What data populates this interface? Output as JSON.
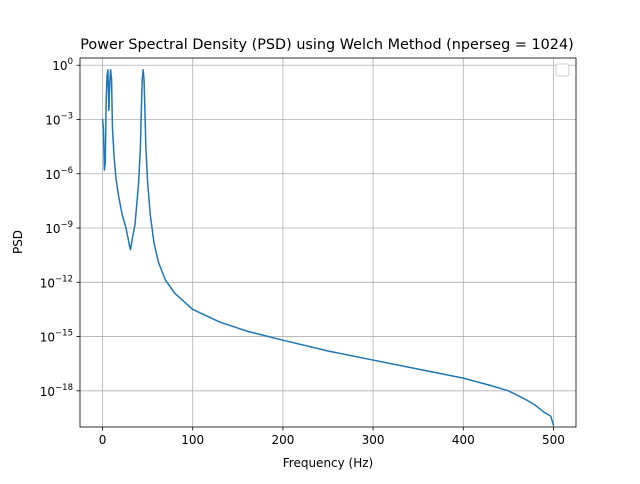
{
  "chart_data": {
    "type": "line",
    "title": "Power Spectral Density (PSD) using Welch Method (nperseg = 1024)",
    "xlabel": "Frequency (Hz)",
    "ylabel": "PSD",
    "yscale": "log",
    "xlim": [
      -25,
      525
    ],
    "ylim_log10": [
      -20,
      0.4
    ],
    "grid": true,
    "legend": {
      "placement": "top-right",
      "entries": []
    },
    "x_ticks": [
      {
        "value": 0,
        "label": "0"
      },
      {
        "value": 100,
        "label": "100"
      },
      {
        "value": 200,
        "label": "200"
      },
      {
        "value": 300,
        "label": "300"
      },
      {
        "value": 400,
        "label": "400"
      },
      {
        "value": 500,
        "label": "500"
      }
    ],
    "y_ticks": [
      {
        "log10": 0,
        "base": "10",
        "exp": "0"
      },
      {
        "log10": -3,
        "base": "10",
        "exp": "−3"
      },
      {
        "log10": -6,
        "base": "10",
        "exp": "−6"
      },
      {
        "log10": -9,
        "base": "10",
        "exp": "−9"
      },
      {
        "log10": -12,
        "base": "10",
        "exp": "−12"
      },
      {
        "log10": -15,
        "base": "10",
        "exp": "−15"
      },
      {
        "log10": -18,
        "base": "10",
        "exp": "−18"
      }
    ],
    "series": [
      {
        "color": "#1f77b4",
        "x": [
          0,
          1,
          2,
          3,
          4,
          5,
          6,
          7,
          8,
          9,
          10,
          11,
          13,
          15,
          18,
          22,
          26,
          28,
          30,
          31,
          33,
          36,
          40,
          42,
          43,
          44,
          45,
          46,
          47,
          48,
          50,
          53,
          57,
          62,
          70,
          80,
          100,
          130,
          160,
          200,
          250,
          300,
          350,
          400,
          430,
          450,
          470,
          480,
          490,
          497,
          500
        ],
        "y": [
          -3.0,
          -3.5,
          -5.8,
          -5.4,
          -2.0,
          -0.6,
          -0.25,
          -2.5,
          -1.0,
          -0.25,
          -0.8,
          -3.5,
          -5.2,
          -6.3,
          -7.3,
          -8.3,
          -9.0,
          -9.5,
          -10.0,
          -10.2,
          -9.6,
          -8.8,
          -6.5,
          -4.5,
          -2.5,
          -0.8,
          -0.25,
          -0.8,
          -2.5,
          -4.5,
          -6.5,
          -8.3,
          -9.8,
          -10.9,
          -11.9,
          -12.6,
          -13.5,
          -14.2,
          -14.7,
          -15.2,
          -15.8,
          -16.3,
          -16.8,
          -17.3,
          -17.7,
          -18.0,
          -18.5,
          -18.8,
          -19.2,
          -19.4,
          -19.9
        ]
      }
    ]
  }
}
